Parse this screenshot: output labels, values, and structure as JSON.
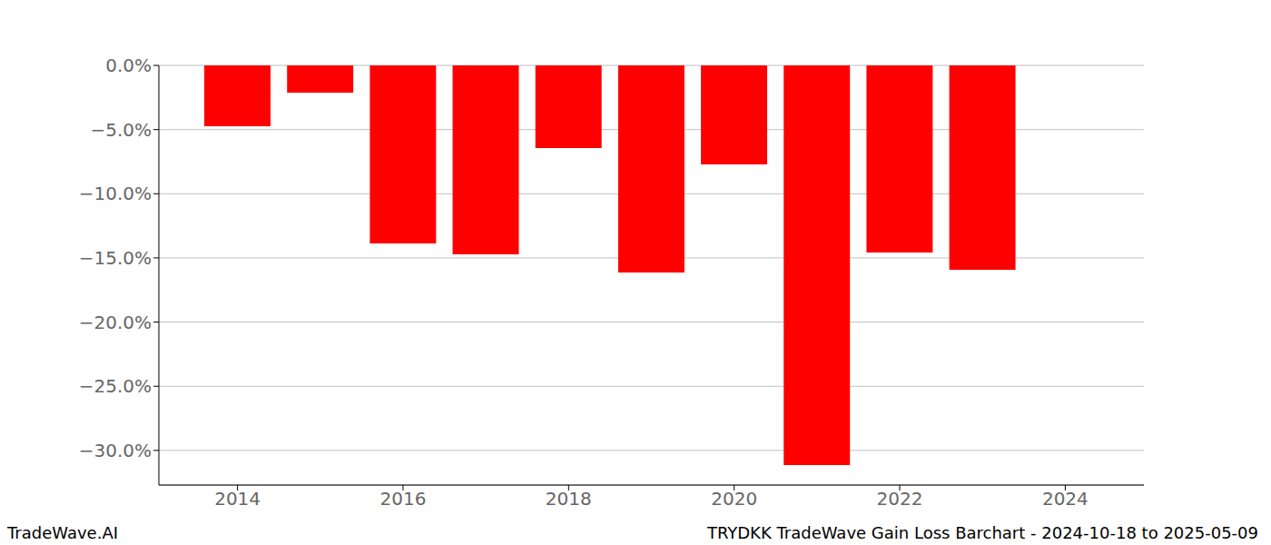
{
  "chart_data": {
    "type": "bar",
    "title": "TRYDKK TradeWave Gain Loss Barchart - 2024-10-18 to 2025-05-09",
    "annotations": [
      "TradeWave.AI"
    ],
    "x": [
      2014,
      2015,
      2016,
      2017,
      2018,
      2019,
      2020,
      2021,
      2022,
      2023
    ],
    "values": [
      -4.74,
      -2.12,
      -13.87,
      -14.72,
      -6.44,
      -16.14,
      -7.71,
      -31.14,
      -14.58,
      -15.92
    ],
    "color": "#ff0000",
    "xlim": [
      2013.05,
      2024.95
    ],
    "xticks": [
      2014,
      2016,
      2018,
      2020,
      2022,
      2024
    ],
    "ylim": [
      -32.7,
      0
    ],
    "yticks": [
      {
        "value": 0,
        "label": "0.0%"
      },
      {
        "value": -5,
        "label": "−5.0%"
      },
      {
        "value": -10,
        "label": "−10.0%"
      },
      {
        "value": -15,
        "label": "−15.0%"
      },
      {
        "value": -20,
        "label": "−20.0%"
      },
      {
        "value": -25,
        "label": "−25.0%"
      },
      {
        "value": -30,
        "label": "−30.0%"
      }
    ],
    "grid": true
  }
}
